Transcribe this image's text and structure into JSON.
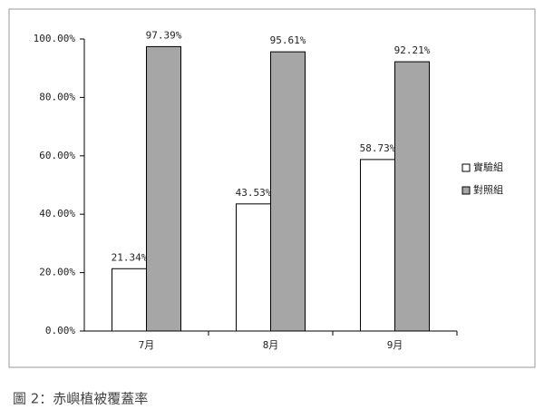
{
  "chart_data": {
    "type": "bar",
    "caption": "圖 2：赤嶼植被覆蓋率",
    "categories": [
      "7月",
      "8月",
      "9月"
    ],
    "series": [
      {
        "name": "實驗組",
        "color": "#ffffff",
        "values": [
          21.34,
          43.53,
          58.73
        ],
        "value_labels": [
          "21.34%",
          "43.53%",
          "58.73%"
        ]
      },
      {
        "name": "對照組",
        "color": "#a6a6a6",
        "values": [
          97.39,
          95.61,
          92.21
        ],
        "value_labels": [
          "97.39%",
          "95.61%",
          "92.21%"
        ]
      }
    ],
    "ylim": [
      0,
      100
    ],
    "yticks": [
      {
        "value": 0,
        "label": "0.00%"
      },
      {
        "value": 20,
        "label": "20.00%"
      },
      {
        "value": 40,
        "label": "40.00%"
      },
      {
        "value": 60,
        "label": "60.00%"
      },
      {
        "value": 80,
        "label": "80.00%"
      },
      {
        "value": 100,
        "label": "100.00%"
      }
    ],
    "legend": "right"
  }
}
